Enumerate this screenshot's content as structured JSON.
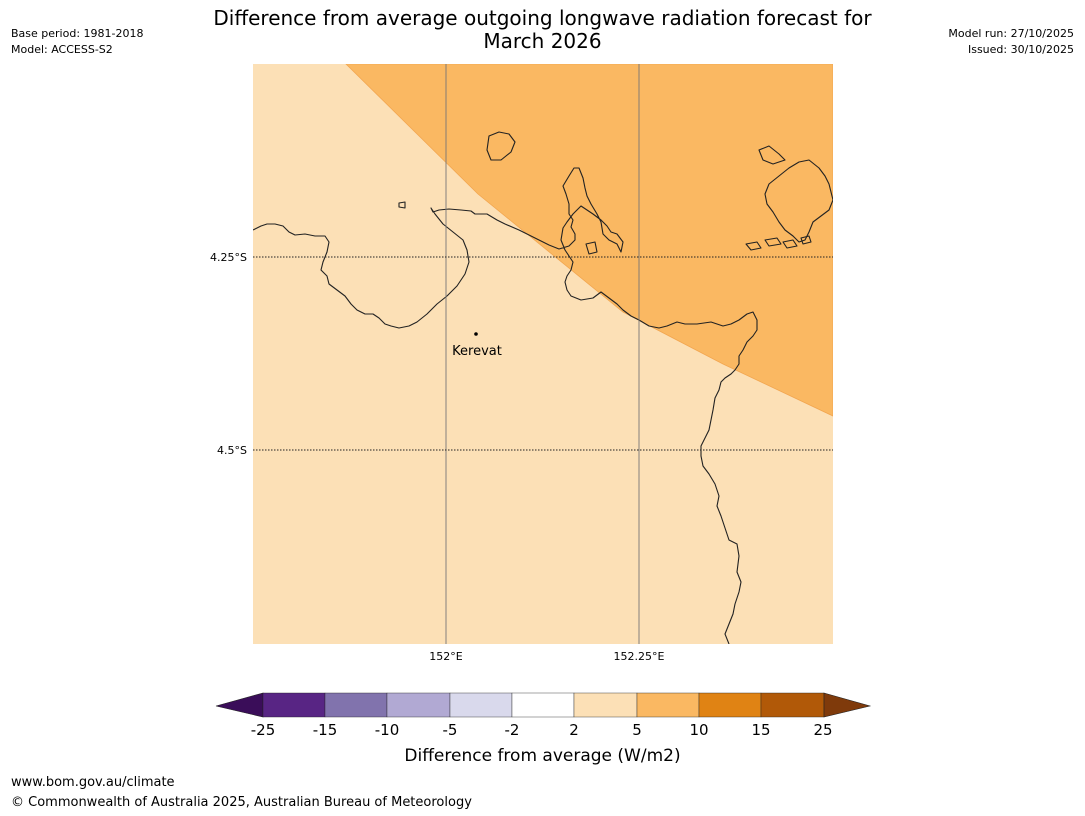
{
  "title_line1": "Difference from average outgoing longwave radiation forecast for",
  "title_line2": "March 2026",
  "meta_left": {
    "base_period": "Base period: 1981-2018",
    "model": "Model: ACCESS-S2"
  },
  "meta_right": {
    "model_run": "Model run: 27/10/2025",
    "issued": "Issued: 30/10/2025"
  },
  "map": {
    "lat_labels": [
      "4.25°S",
      "4.5°S"
    ],
    "lon_labels": [
      "152°E",
      "152.25°E"
    ],
    "place": "Kerevat",
    "colors": {
      "band_2_5": "#fce0b6",
      "band_5_10": "#fab862",
      "coast": "#222222"
    }
  },
  "colorbar": {
    "ticks": [
      "-25",
      "-15",
      "-10",
      "-5",
      "-2",
      "2",
      "5",
      "10",
      "15",
      "25"
    ],
    "colors": [
      "#3a0d59",
      "#582584",
      "#8173ad",
      "#b1a9d3",
      "#d9d9ec",
      "#ffffff",
      "#fce0b6",
      "#fab862",
      "#e08314",
      "#b15908",
      "#7f3a0b"
    ],
    "label": "Difference from average (W/m2)"
  },
  "footer": {
    "url": "www.bom.gov.au/climate",
    "copyright": "© Commonwealth of Australia 2025, Australian Bureau of Meteorology"
  }
}
